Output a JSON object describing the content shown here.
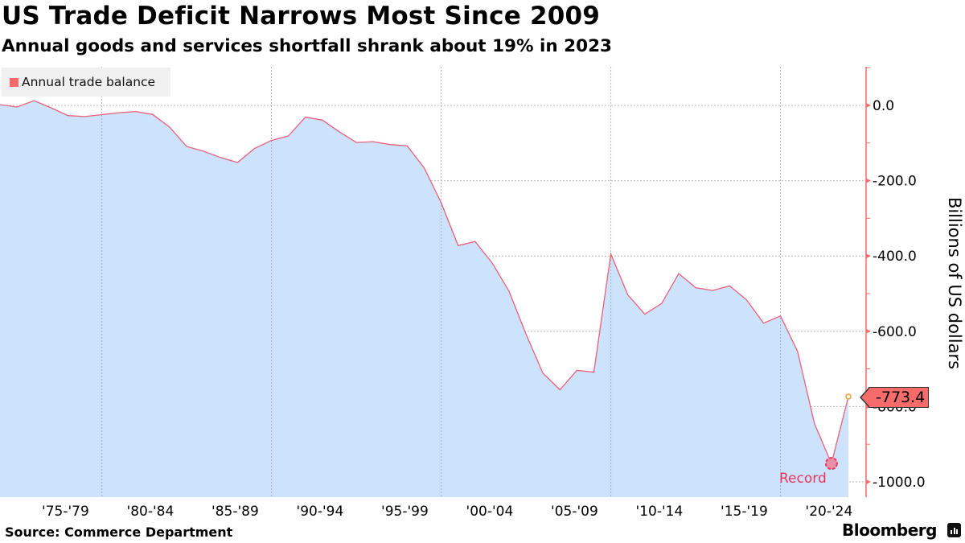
{
  "header": {
    "title": "US Trade Deficit Narrows Most Since 2009",
    "subtitle": "Annual goods and services shortfall shrank about 19% in 2023"
  },
  "legend": {
    "label": "Annual trade balance",
    "color": "#f76b6b"
  },
  "yaxis": {
    "label": "Billions of US dollars"
  },
  "annotations": {
    "last_value": "-773.4",
    "record_label": "Record"
  },
  "footer": {
    "source": "Source: Commerce Department",
    "brand": "Bloomberg"
  },
  "colors": {
    "line": "#e8607a",
    "fill": "#cce3fb",
    "axis": "#f76b6b",
    "record": "#e8345a",
    "last_point": "#f0a030"
  },
  "chart_data": {
    "type": "area",
    "title": "US Trade Deficit Narrows Most Since 2009",
    "subtitle": "Annual goods and services shortfall shrank about 19% in 2023",
    "xlabel": "",
    "ylabel": "Billions of US dollars",
    "ylim": [
      -1040,
      100
    ],
    "y_ticks": [
      "0.0",
      "-200.0",
      "-400.0",
      "-600.0",
      "-800.0",
      "-1000.0"
    ],
    "x_tick_labels": [
      "'75-'79",
      "'80-'84",
      "'85-'89",
      "'90-'94",
      "'95-'99",
      "'00-'04",
      "'05-'09",
      "'10-'14",
      "'15-'19",
      "'20-'24"
    ],
    "legend": [
      "Annual trade balance"
    ],
    "grid": true,
    "x": [
      1973,
      1974,
      1975,
      1976,
      1977,
      1978,
      1979,
      1980,
      1981,
      1982,
      1983,
      1984,
      1985,
      1986,
      1987,
      1988,
      1989,
      1990,
      1991,
      1992,
      1993,
      1994,
      1995,
      1996,
      1997,
      1998,
      1999,
      2000,
      2001,
      2002,
      2003,
      2004,
      2005,
      2006,
      2007,
      2008,
      2009,
      2010,
      2011,
      2012,
      2013,
      2014,
      2015,
      2016,
      2017,
      2018,
      2019,
      2020,
      2021,
      2022,
      2023
    ],
    "series": [
      {
        "name": "Annual trade balance",
        "values": [
          1.9,
          -4.3,
          12.4,
          -6.1,
          -27.2,
          -29.8,
          -24.6,
          -19.4,
          -16.2,
          -24.2,
          -57.8,
          -109.1,
          -121.9,
          -138.5,
          -151.7,
          -114.6,
          -93.1,
          -80.9,
          -31.1,
          -39.2,
          -70.3,
          -98.5,
          -96.4,
          -104.1,
          -107.6,
          -166.1,
          -258.6,
          -372.5,
          -361.5,
          -418.2,
          -493.9,
          -607.7,
          -711.6,
          -755.3,
          -703.7,
          -708.7,
          -394.8,
          -503.1,
          -554.5,
          -526.0,
          -446.8,
          -484.1,
          -491.6,
          -479.4,
          -516.7,
          -578.5,
          -559.4,
          -653.0,
          -845.1,
          -951.2,
          -773.4
        ]
      }
    ],
    "annotations": [
      {
        "label": "Record",
        "x": 2022,
        "y": -951.2
      },
      {
        "label": "-773.4",
        "x": 2023,
        "y": -773.4
      }
    ]
  }
}
